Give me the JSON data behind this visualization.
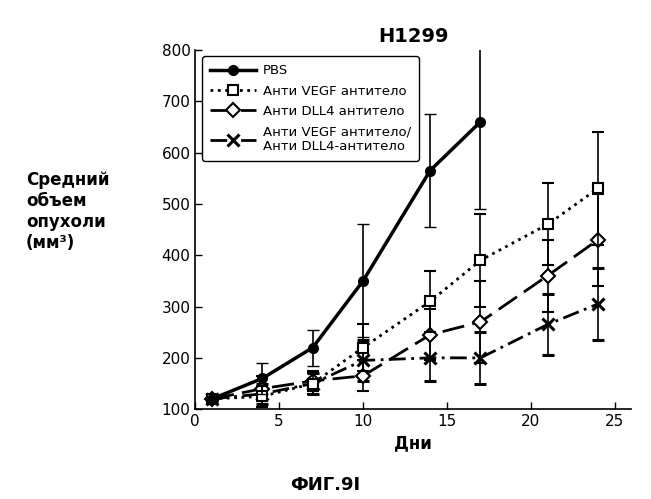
{
  "title": "H1299",
  "xlabel": "Дни",
  "ylabel_lines": [
    "Средний",
    "объем",
    "опухоли",
    "(мм³)"
  ],
  "fig_label": "ФИГ.9I",
  "ylim": [
    100,
    800
  ],
  "xlim": [
    0,
    26
  ],
  "yticks": [
    100,
    200,
    300,
    400,
    500,
    600,
    700,
    800
  ],
  "xticks": [
    0,
    5,
    10,
    15,
    20,
    25
  ],
  "pbs": {
    "x": [
      1,
      4,
      7,
      10,
      14,
      17
    ],
    "y": [
      120,
      160,
      220,
      350,
      565,
      660
    ],
    "yerr": [
      5,
      30,
      35,
      110,
      110,
      170
    ],
    "label": "PBS"
  },
  "anti_vegf": {
    "x": [
      1,
      4,
      7,
      10,
      14,
      17,
      21,
      24
    ],
    "y": [
      120,
      125,
      150,
      220,
      310,
      390,
      460,
      530
    ],
    "yerr": [
      5,
      20,
      20,
      45,
      60,
      90,
      80,
      110
    ],
    "label": "Анти VEGF антитело"
  },
  "anti_dll4": {
    "x": [
      1,
      4,
      7,
      10,
      14,
      17,
      21,
      24
    ],
    "y": [
      120,
      140,
      155,
      165,
      245,
      270,
      360,
      430
    ],
    "yerr": [
      5,
      25,
      20,
      30,
      50,
      80,
      70,
      90
    ],
    "label": "Анти DLL4 антитело"
  },
  "combo": {
    "x": [
      1,
      4,
      7,
      10,
      14,
      17,
      21,
      24
    ],
    "y": [
      120,
      130,
      150,
      195,
      200,
      200,
      265,
      305
    ],
    "yerr": [
      5,
      20,
      20,
      40,
      45,
      50,
      60,
      70
    ],
    "label": "Анти VEGF антитело/\nАнти DLL4-антитело"
  },
  "background_color": "#ffffff"
}
